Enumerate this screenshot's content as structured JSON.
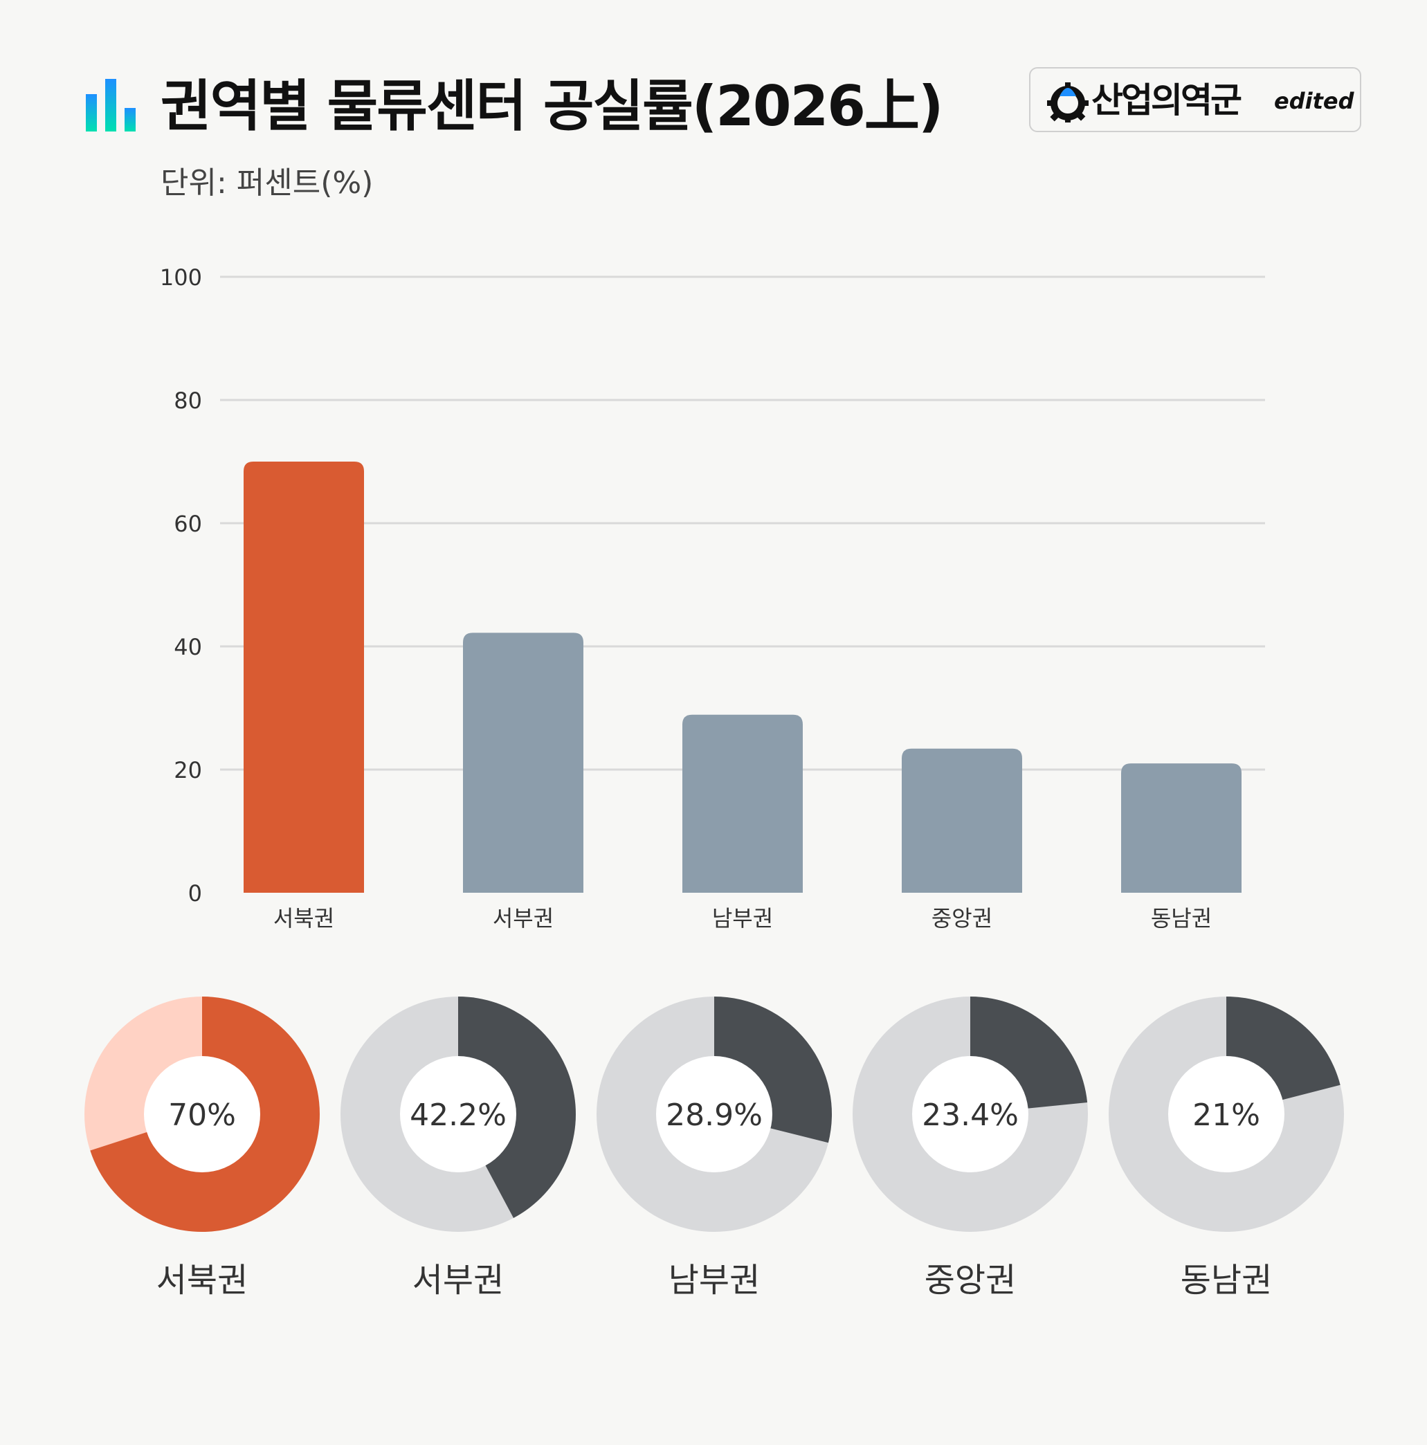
{
  "header": {
    "title": "권역별 물류센터 공실률(2026上)",
    "unit": "단위: 퍼센트(%)"
  },
  "logo": {
    "name": "산업의역군",
    "tag": "edited"
  },
  "colors": {
    "highlight": "#d95b32",
    "highlight_light": "#ffd2c4",
    "bar_default": "#8c9dab",
    "donut_dark": "#4a4e52",
    "donut_light": "#d8d9db",
    "grid": "#d9d9d9",
    "icon_gradient": [
      "#1e90ff",
      "#00e0b0"
    ]
  },
  "chart_data": [
    {
      "type": "bar",
      "categories": [
        "서북권",
        "서부권",
        "남부권",
        "중앙권",
        "동남권"
      ],
      "values": [
        70,
        42.2,
        28.9,
        23.4,
        21
      ],
      "ylim": [
        0,
        100
      ],
      "yticks": [
        0,
        20,
        40,
        60,
        80,
        100
      ],
      "grid": true,
      "highlight_index": 0
    },
    {
      "type": "pie",
      "variant": "donut",
      "items": [
        {
          "label": "서북권",
          "value": 70,
          "value_label": "70%"
        },
        {
          "label": "서부권",
          "value": 42.2,
          "value_label": "42.2%"
        },
        {
          "label": "남부권",
          "value": 28.9,
          "value_label": "28.9%"
        },
        {
          "label": "중앙권",
          "value": 23.4,
          "value_label": "23.4%"
        },
        {
          "label": "동남권",
          "value": 21,
          "value_label": "21%"
        }
      ],
      "highlight_index": 0
    }
  ]
}
